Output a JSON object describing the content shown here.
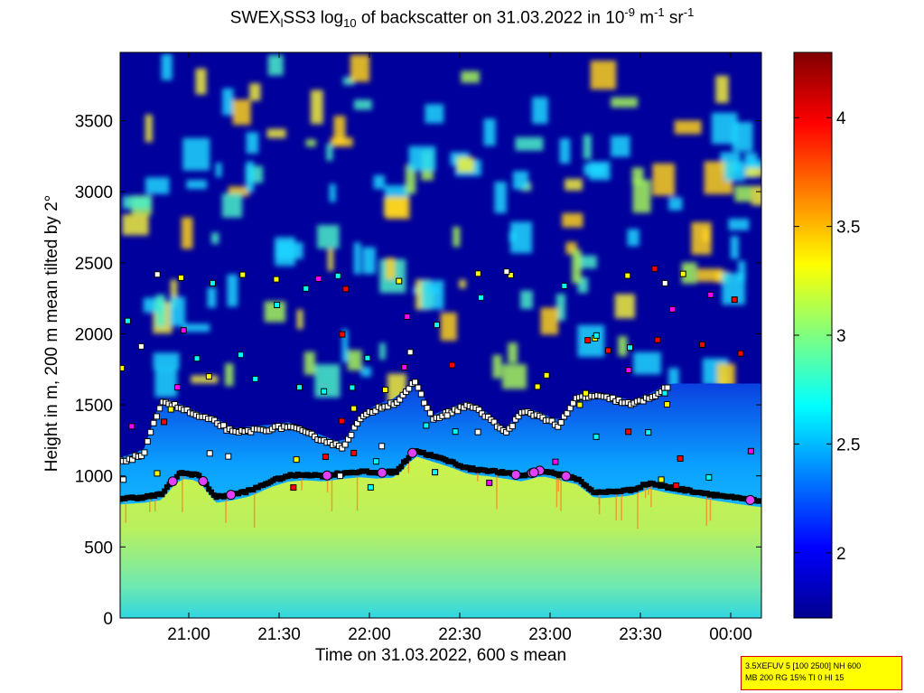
{
  "title": {
    "part1": "SWEX",
    "sub1": "l",
    "part2": "SS3 log",
    "sub2": "10",
    "part3": " of backscatter on 31.03.2022 in 10",
    "sup1": "-9",
    "part4": " m",
    "sup2": "-1",
    "part5": " sr",
    "sup3": "-1"
  },
  "info_box": {
    "line1": "3.5XEFUV 5 [100 2500] NH 600",
    "line2": "MB 200 RG 15% TI 0 HI 15"
  },
  "chart_data": {
    "type": "heatmap",
    "title": "SWEXlSS3 log10 of backscatter on 31.03.2022 in 10-9 m-1 sr-1",
    "xlabel": "Time on 31.03.2022, 600 s mean",
    "ylabel": "Height in m, 200 m mean tilted by 2°",
    "x_ticks": [
      "21:00",
      "21:30",
      "22:00",
      "22:30",
      "23:00",
      "23:30",
      "00:00"
    ],
    "x_tick_values": [
      21.0,
      21.5,
      22.0,
      22.5,
      23.0,
      23.5,
      24.0
    ],
    "xlim": [
      20.62,
      24.17
    ],
    "y_ticks": [
      0,
      500,
      1000,
      1500,
      2000,
      2500,
      3000,
      3500
    ],
    "ylim": [
      0,
      3980
    ],
    "colorbar": {
      "ticks": [
        2,
        2.5,
        3,
        3.5,
        4
      ],
      "range": [
        1.7,
        4.3
      ],
      "colormap": "jet"
    },
    "mixing_layer_height": {
      "x": [
        20.62,
        20.75,
        20.85,
        20.95,
        21.05,
        21.15,
        21.25,
        21.35,
        21.45,
        21.55,
        21.65,
        21.75,
        21.85,
        21.95,
        22.05,
        22.15,
        22.25,
        22.35,
        22.45,
        22.55,
        22.65,
        22.75,
        22.85,
        22.95,
        23.05,
        23.15,
        23.25,
        23.35,
        23.45,
        23.55,
        23.65,
        23.75,
        23.85,
        23.95,
        24.05,
        24.17
      ],
      "y": [
        840,
        850,
        870,
        1020,
        1010,
        850,
        870,
        900,
        960,
        1000,
        1010,
        1000,
        1020,
        1030,
        1020,
        1030,
        1180,
        1140,
        1100,
        1050,
        1040,
        1020,
        1000,
        1040,
        1010,
        980,
        880,
        890,
        900,
        950,
        920,
        900,
        880,
        860,
        840,
        820
      ]
    },
    "cloud_layer_height": {
      "x": [
        20.62,
        20.75,
        20.85,
        20.95,
        21.05,
        21.15,
        21.25,
        21.35,
        21.45,
        21.55,
        21.65,
        21.75,
        21.85,
        21.95,
        22.05,
        22.15,
        22.25,
        22.35,
        22.45,
        22.55,
        22.65,
        22.75,
        22.85,
        22.95,
        23.05,
        23.15,
        23.25,
        23.35,
        23.45,
        23.55,
        23.65
      ],
      "y": [
        1100,
        1150,
        1530,
        1480,
        1420,
        1380,
        1300,
        1320,
        1330,
        1350,
        1300,
        1250,
        1200,
        1400,
        1480,
        1520,
        1660,
        1400,
        1450,
        1500,
        1420,
        1300,
        1450,
        1420,
        1350,
        1550,
        1560,
        1540,
        1500,
        1550,
        1620
      ]
    }
  }
}
